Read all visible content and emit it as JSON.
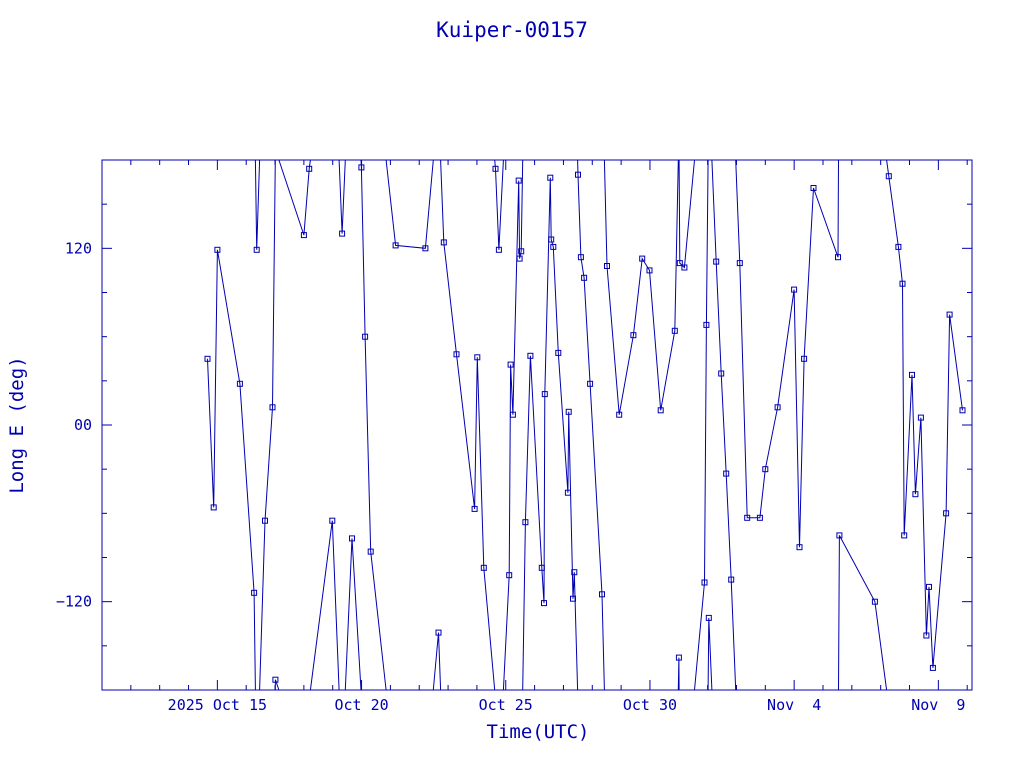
{
  "chart_data": {
    "type": "line",
    "title": "Kuiper-00157",
    "xlabel": "Time(UTC)",
    "ylabel": "Long E (deg)",
    "xlim": [
      "2025-10-11T00:00",
      "2025-11-10T04:00"
    ],
    "ylim": [
      -180,
      180
    ],
    "x_ticks": [
      {
        "date": "2025-10-15",
        "label": "2025 Oct 15"
      },
      {
        "date": "2025-10-20",
        "label": "Oct 20"
      },
      {
        "date": "2025-10-25",
        "label": "Oct 25"
      },
      {
        "date": "2025-10-30",
        "label": "Oct 30"
      },
      {
        "date": "2025-11-04",
        "label": "Nov  4"
      },
      {
        "date": "2025-11-09",
        "label": "Nov  9"
      }
    ],
    "y_ticks": [
      {
        "value": 120,
        "label": "120"
      },
      {
        "value": 0,
        "label": "00"
      },
      {
        "value": -120,
        "label": "−120"
      }
    ],
    "grid": false,
    "marker": "square",
    "series": [
      {
        "points": [
          [
            "2025-10-14T15:46",
            45
          ],
          [
            "2025-10-14T20:58",
            -56
          ],
          [
            "2025-10-15T00:00",
            119
          ],
          [
            "2025-10-15T18:46",
            28
          ],
          [
            "2025-10-16T06:36",
            -114
          ],
          [
            "2025-10-16T08:42",
            119
          ],
          [
            "2025-10-16T15:41",
            -65
          ],
          [
            "2025-10-16T21:51",
            12
          ],
          [
            "2025-10-17T00:20",
            -173
          ],
          [
            "2025-10-18T00:00",
            129
          ],
          [
            "2025-10-18T04:27",
            174
          ],
          [
            "2025-10-18T23:40",
            -65
          ],
          [
            "2025-10-19T07:47",
            130
          ],
          [
            "2025-10-19T16:04",
            -77
          ],
          [
            "2025-10-19T23:53",
            175
          ],
          [
            "2025-10-20T02:59",
            60
          ],
          [
            "2025-10-20T07:38",
            -86
          ],
          [
            "2025-10-21T04:20",
            122
          ],
          [
            "2025-10-22T05:09",
            120
          ],
          [
            "2025-10-22T16:00",
            -141
          ],
          [
            "2025-10-22T20:24",
            124
          ],
          [
            "2025-10-23T07:02",
            48
          ],
          [
            "2025-10-23T22:06",
            -57
          ],
          [
            "2025-10-24T00:20",
            46
          ],
          [
            "2025-10-24T05:44",
            -97
          ],
          [
            "2025-10-24T15:28",
            174
          ],
          [
            "2025-10-24T18:19",
            119
          ],
          [
            "2025-10-25T02:50",
            -102
          ],
          [
            "2025-10-25T04:00",
            41
          ],
          [
            "2025-10-25T05:55",
            7
          ],
          [
            "2025-10-25T10:47",
            166
          ],
          [
            "2025-10-25T11:29",
            113
          ],
          [
            "2025-10-25T12:50",
            118
          ],
          [
            "2025-10-25T16:20",
            -66
          ],
          [
            "2025-10-25T20:29",
            47
          ],
          [
            "2025-10-26T06:01",
            -97
          ],
          [
            "2025-10-26T07:52",
            -121
          ],
          [
            "2025-10-26T08:27",
            21
          ],
          [
            "2025-10-26T13:06",
            168
          ],
          [
            "2025-10-26T13:48",
            126
          ],
          [
            "2025-10-26T15:33",
            121
          ],
          [
            "2025-10-26T19:44",
            49
          ],
          [
            "2025-10-27T03:43",
            -46
          ],
          [
            "2025-10-27T04:25",
            9
          ],
          [
            "2025-10-27T07:58",
            -118
          ],
          [
            "2025-10-27T09:04",
            -100
          ],
          [
            "2025-10-27T12:07",
            170
          ],
          [
            "2025-10-27T14:30",
            114
          ],
          [
            "2025-10-27T17:13",
            100
          ],
          [
            "2025-10-27T22:10",
            28
          ],
          [
            "2025-10-28T08:06",
            -115
          ],
          [
            "2025-10-28T12:15",
            108
          ],
          [
            "2025-10-28T22:24",
            7
          ],
          [
            "2025-10-29T10:12",
            61
          ],
          [
            "2025-10-29T17:31",
            113
          ],
          [
            "2025-10-29T23:38",
            105
          ],
          [
            "2025-10-30T08:58",
            10
          ],
          [
            "2025-10-30T20:41",
            64
          ],
          [
            "2025-10-31T00:07",
            -158
          ],
          [
            "2025-10-31T00:50",
            110
          ],
          [
            "2025-10-31T04:41",
            107
          ],
          [
            "2025-10-31T21:24",
            -107
          ],
          [
            "2025-10-31T22:57",
            68
          ],
          [
            "2025-11-01T00:58",
            -131
          ],
          [
            "2025-11-01T07:06",
            111
          ],
          [
            "2025-11-01T11:16",
            35
          ],
          [
            "2025-11-01T15:27",
            -33
          ],
          [
            "2025-11-01T19:38",
            -105
          ],
          [
            "2025-11-02T02:46",
            110
          ],
          [
            "2025-11-02T08:55",
            -63
          ],
          [
            "2025-11-02T19:31",
            -63
          ],
          [
            "2025-11-02T23:57",
            -30
          ],
          [
            "2025-11-03T10:14",
            12
          ],
          [
            "2025-11-03T23:59",
            92
          ],
          [
            "2025-11-04T04:27",
            -83
          ],
          [
            "2025-11-04T08:15",
            45
          ],
          [
            "2025-11-04T16:08",
            161
          ],
          [
            "2025-11-05T12:28",
            114
          ],
          [
            "2025-11-05T13:38",
            -75
          ],
          [
            "2025-11-06T19:14",
            -120
          ],
          [
            "2025-11-07T06:44",
            169
          ],
          [
            "2025-11-07T14:46",
            121
          ],
          [
            "2025-11-07T18:08",
            96
          ],
          [
            "2025-11-07T19:36",
            -75
          ],
          [
            "2025-11-08T02:03",
            34
          ],
          [
            "2025-11-08T04:56",
            -47
          ],
          [
            "2025-11-08T09:27",
            5
          ],
          [
            "2025-11-08T14:05",
            -143
          ],
          [
            "2025-11-08T16:11",
            -110
          ],
          [
            "2025-11-08T19:30",
            -165
          ],
          [
            "2025-11-09T06:28",
            -60
          ],
          [
            "2025-11-09T09:22",
            75
          ],
          [
            "2025-11-09T20:08",
            10
          ]
        ]
      }
    ]
  }
}
